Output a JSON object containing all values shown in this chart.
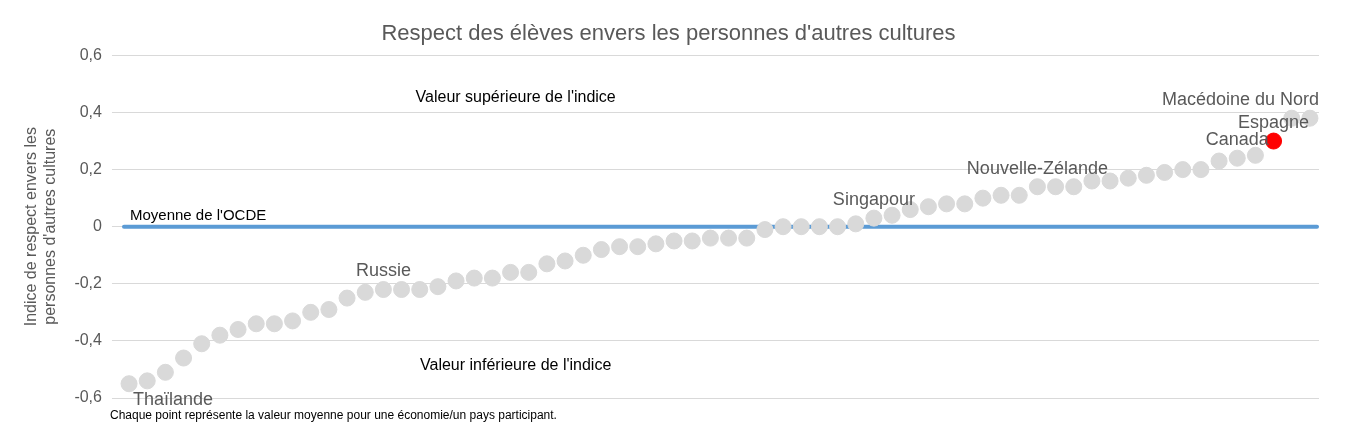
{
  "chart_data": {
    "type": "scatter",
    "title": "Respect des élèves envers les personnes d'autres cultures",
    "ylabel": "Indice de respect envers les personnes d'autres cultures",
    "categories": [
      null,
      null,
      null,
      null,
      null,
      null,
      null,
      null,
      null,
      null,
      null,
      null,
      null,
      null,
      null,
      null,
      null,
      null,
      null,
      null,
      null,
      null,
      null,
      null,
      null,
      null,
      null,
      null,
      null,
      null,
      null,
      null,
      null,
      null,
      null,
      null,
      null,
      null,
      null,
      null,
      null,
      null,
      null,
      null,
      null,
      null,
      null,
      null,
      null,
      null,
      null,
      null,
      null,
      null,
      null,
      null,
      null,
      null,
      null,
      null,
      null,
      null,
      null,
      null,
      null,
      null
    ],
    "values": [
      -0.55,
      -0.54,
      -0.51,
      -0.46,
      -0.41,
      -0.38,
      -0.36,
      -0.34,
      -0.34,
      -0.33,
      -0.3,
      -0.29,
      -0.25,
      -0.23,
      -0.22,
      -0.22,
      -0.22,
      -0.21,
      -0.19,
      -0.18,
      -0.18,
      -0.16,
      -0.16,
      -0.13,
      -0.12,
      -0.1,
      -0.08,
      -0.07,
      -0.07,
      -0.06,
      -0.05,
      -0.05,
      -0.04,
      -0.04,
      -0.04,
      -0.01,
      0,
      0,
      0,
      0,
      0.01,
      0.03,
      0.04,
      0.06,
      0.07,
      0.08,
      0.08,
      0.1,
      0.11,
      0.11,
      0.14,
      0.14,
      0.14,
      0.16,
      0.16,
      0.17,
      0.18,
      0.19,
      0.2,
      0.2,
      0.23,
      0.24,
      0.25,
      0.3,
      0.38,
      0.38
    ],
    "colors": [
      "#d9d9d9",
      "#d9d9d9",
      "#d9d9d9",
      "#d9d9d9",
      "#d9d9d9",
      "#d9d9d9",
      "#d9d9d9",
      "#d9d9d9",
      "#d9d9d9",
      "#d9d9d9",
      "#d9d9d9",
      "#d9d9d9",
      "#d9d9d9",
      "#d9d9d9",
      "#d9d9d9",
      "#d9d9d9",
      "#d9d9d9",
      "#d9d9d9",
      "#d9d9d9",
      "#d9d9d9",
      "#d9d9d9",
      "#d9d9d9",
      "#d9d9d9",
      "#d9d9d9",
      "#d9d9d9",
      "#d9d9d9",
      "#d9d9d9",
      "#d9d9d9",
      "#d9d9d9",
      "#d9d9d9",
      "#d9d9d9",
      "#d9d9d9",
      "#d9d9d9",
      "#d9d9d9",
      "#d9d9d9",
      "#d9d9d9",
      "#d9d9d9",
      "#d9d9d9",
      "#d9d9d9",
      "#d9d9d9",
      "#d9d9d9",
      "#d9d9d9",
      "#d9d9d9",
      "#d9d9d9",
      "#d9d9d9",
      "#d9d9d9",
      "#d9d9d9",
      "#d9d9d9",
      "#d9d9d9",
      "#d9d9d9",
      "#d9d9d9",
      "#d9d9d9",
      "#d9d9d9",
      "#d9d9d9",
      "#d9d9d9",
      "#d9d9d9",
      "#d9d9d9",
      "#d9d9d9",
      "#d9d9d9",
      "#d9d9d9",
      "#d9d9d9",
      "#d9d9d9",
      "#d9d9d9",
      "#ff0000",
      "#d9d9d9",
      "#d9d9d9"
    ],
    "ylim": [
      -0.6,
      0.6
    ],
    "yticks": [
      {
        "value": -0.6,
        "label": "-0,6"
      },
      {
        "value": -0.4,
        "label": "-0,4"
      },
      {
        "value": -0.2,
        "label": "-0,2"
      },
      0,
      {
        "value": 0.2,
        "label": "0,2"
      },
      {
        "value": 0.4,
        "label": "0,4"
      },
      {
        "value": 0.6,
        "label": "0,6"
      }
    ],
    "tick_labels": "y",
    "grid": "y",
    "marker": "circle",
    "legend": false,
    "ref_lines": [
      {
        "axis": "y",
        "value": 0,
        "label": "Moyenne de l'OCDE",
        "color": "#5b9bd5"
      }
    ],
    "annotations": [
      "Valeur supérieure de l'indice",
      "Valeur inférieure de l'indice",
      "Chaque point représente la valeur moyenne pour une économie/un pays participant.",
      "Thaïlande",
      "Macédoine du Nord",
      {
        "text": "Russie",
        "y": -0.22
      },
      {
        "text": "Singapour",
        "y": 0.03
      },
      {
        "text": "Nouvelle-Zélande",
        "y": 0.14
      },
      {
        "text": "Canada",
        "y": 0.24
      },
      {
        "text": "Espagne",
        "y": 0.3
      }
    ]
  }
}
